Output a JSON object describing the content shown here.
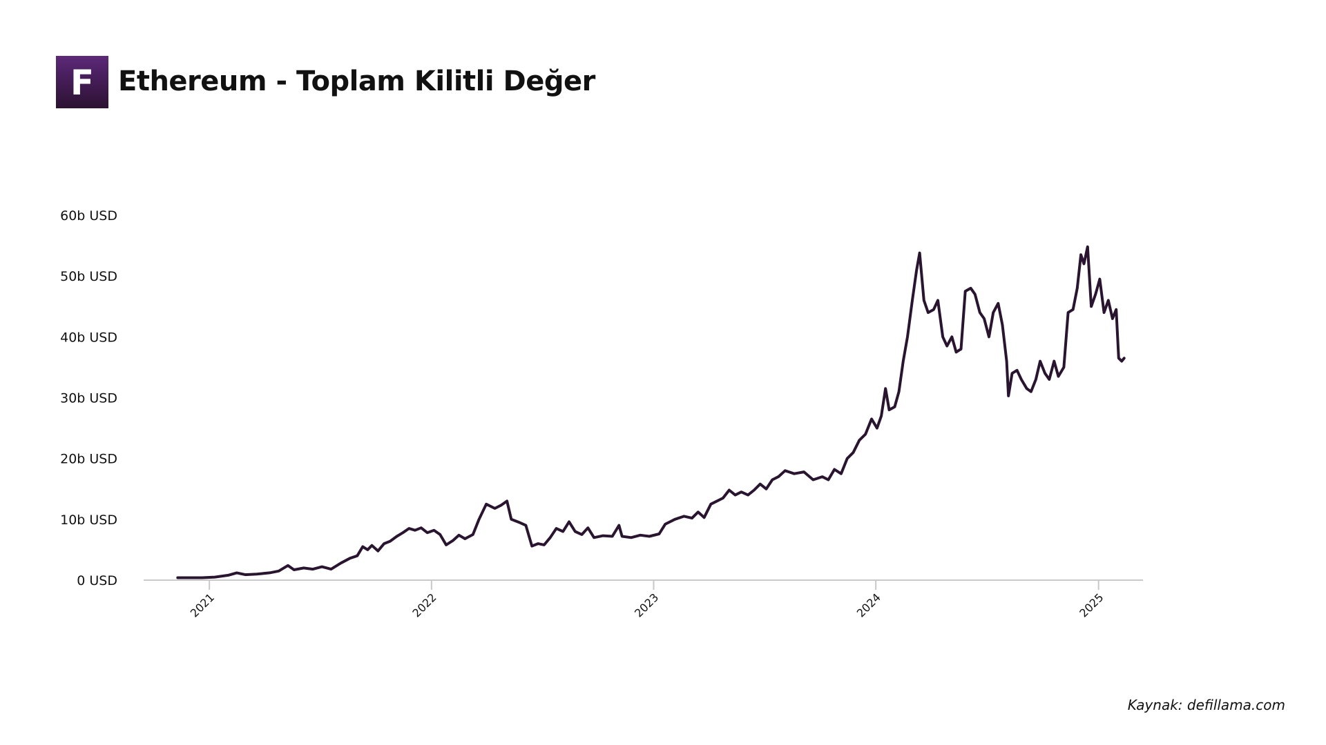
{
  "header": {
    "logo_letter": "F",
    "title": "Ethereum - Toplam Kilitli Değer"
  },
  "footer": {
    "source": "Kaynak: defillama.com"
  },
  "colors": {
    "line": "#2a1530",
    "axis": "#c8c8c8",
    "logo": "#4a1f5f"
  },
  "chart_data": {
    "type": "line",
    "title": "Ethereum - Toplam Kilitli Değer",
    "xlabel": "",
    "ylabel": "",
    "ylim": [
      0,
      60
    ],
    "xlim": [
      "2020-09-15",
      "2025-03-15"
    ],
    "grid": false,
    "y_ticks": [
      {
        "value": 0,
        "label": "0 USD"
      },
      {
        "value": 10,
        "label": "10b USD"
      },
      {
        "value": 20,
        "label": "20b USD"
      },
      {
        "value": 30,
        "label": "30b USD"
      },
      {
        "value": 40,
        "label": "40b USD"
      },
      {
        "value": 50,
        "label": "50b USD"
      },
      {
        "value": 60,
        "label": "60b USD"
      }
    ],
    "x_ticks": [
      {
        "value": "2021-01-01",
        "label": "2021"
      },
      {
        "value": "2022-01-01",
        "label": "2022"
      },
      {
        "value": "2023-01-01",
        "label": "2023"
      },
      {
        "value": "2024-01-01",
        "label": "2024"
      },
      {
        "value": "2025-01-01",
        "label": "2025"
      }
    ],
    "series": [
      {
        "points": [
          [
            "2020-11-10",
            0.4
          ],
          [
            "2020-12-01",
            0.4
          ],
          [
            "2020-12-20",
            0.4
          ],
          [
            "2021-01-10",
            0.5
          ],
          [
            "2021-02-01",
            0.8
          ],
          [
            "2021-02-15",
            1.2
          ],
          [
            "2021-03-01",
            0.9
          ],
          [
            "2021-03-20",
            1.0
          ],
          [
            "2021-04-10",
            1.2
          ],
          [
            "2021-04-25",
            1.5
          ],
          [
            "2021-05-10",
            2.4
          ],
          [
            "2021-05-20",
            1.7
          ],
          [
            "2021-06-05",
            2.0
          ],
          [
            "2021-06-20",
            1.8
          ],
          [
            "2021-07-05",
            2.2
          ],
          [
            "2021-07-20",
            1.8
          ],
          [
            "2021-08-05",
            2.8
          ],
          [
            "2021-08-20",
            3.6
          ],
          [
            "2021-09-01",
            4.0
          ],
          [
            "2021-09-10",
            5.5
          ],
          [
            "2021-09-18",
            5.0
          ],
          [
            "2021-09-25",
            5.7
          ],
          [
            "2021-10-05",
            4.8
          ],
          [
            "2021-10-15",
            6.0
          ],
          [
            "2021-10-25",
            6.4
          ],
          [
            "2021-11-05",
            7.2
          ],
          [
            "2021-11-15",
            7.8
          ],
          [
            "2021-11-25",
            8.5
          ],
          [
            "2021-12-05",
            8.2
          ],
          [
            "2021-12-15",
            8.6
          ],
          [
            "2021-12-25",
            7.8
          ],
          [
            "2022-01-05",
            8.2
          ],
          [
            "2022-01-15",
            7.5
          ],
          [
            "2022-01-25",
            5.8
          ],
          [
            "2022-02-05",
            6.5
          ],
          [
            "2022-02-15",
            7.4
          ],
          [
            "2022-02-25",
            6.8
          ],
          [
            "2022-03-10",
            7.5
          ],
          [
            "2022-03-20",
            10.0
          ],
          [
            "2022-04-01",
            12.5
          ],
          [
            "2022-04-15",
            11.8
          ],
          [
            "2022-04-25",
            12.3
          ],
          [
            "2022-05-05",
            13.0
          ],
          [
            "2022-05-12",
            10.0
          ],
          [
            "2022-05-25",
            9.5
          ],
          [
            "2022-06-05",
            9.0
          ],
          [
            "2022-06-15",
            5.6
          ],
          [
            "2022-06-25",
            6.0
          ],
          [
            "2022-07-05",
            5.8
          ],
          [
            "2022-07-15",
            7.0
          ],
          [
            "2022-07-25",
            8.5
          ],
          [
            "2022-08-05",
            8.0
          ],
          [
            "2022-08-15",
            9.6
          ],
          [
            "2022-08-25",
            8.0
          ],
          [
            "2022-09-05",
            7.5
          ],
          [
            "2022-09-15",
            8.6
          ],
          [
            "2022-09-25",
            7.0
          ],
          [
            "2022-10-10",
            7.3
          ],
          [
            "2022-10-25",
            7.2
          ],
          [
            "2022-11-05",
            9.0
          ],
          [
            "2022-11-10",
            7.2
          ],
          [
            "2022-11-25",
            7.0
          ],
          [
            "2022-12-10",
            7.4
          ],
          [
            "2022-12-25",
            7.2
          ],
          [
            "2023-01-10",
            7.6
          ],
          [
            "2023-01-20",
            9.2
          ],
          [
            "2023-02-05",
            10.0
          ],
          [
            "2023-02-20",
            10.5
          ],
          [
            "2023-03-05",
            10.2
          ],
          [
            "2023-03-15",
            11.2
          ],
          [
            "2023-03-25",
            10.3
          ],
          [
            "2023-04-05",
            12.5
          ],
          [
            "2023-04-15",
            13.0
          ],
          [
            "2023-04-25",
            13.5
          ],
          [
            "2023-05-05",
            14.8
          ],
          [
            "2023-05-15",
            14.0
          ],
          [
            "2023-05-25",
            14.5
          ],
          [
            "2023-06-05",
            14.0
          ],
          [
            "2023-06-15",
            14.8
          ],
          [
            "2023-06-25",
            15.8
          ],
          [
            "2023-07-05",
            15.0
          ],
          [
            "2023-07-15",
            16.5
          ],
          [
            "2023-07-25",
            17.0
          ],
          [
            "2023-08-05",
            18.0
          ],
          [
            "2023-08-20",
            17.5
          ],
          [
            "2023-09-05",
            17.8
          ],
          [
            "2023-09-20",
            16.5
          ],
          [
            "2023-10-05",
            17.0
          ],
          [
            "2023-10-15",
            16.5
          ],
          [
            "2023-10-25",
            18.2
          ],
          [
            "2023-11-05",
            17.5
          ],
          [
            "2023-11-15",
            20.0
          ],
          [
            "2023-11-25",
            21.0
          ],
          [
            "2023-12-05",
            23.0
          ],
          [
            "2023-12-15",
            24.0
          ],
          [
            "2023-12-25",
            26.5
          ],
          [
            "2024-01-03",
            25.0
          ],
          [
            "2024-01-10",
            27.0
          ],
          [
            "2024-01-17",
            31.5
          ],
          [
            "2024-01-23",
            28.0
          ],
          [
            "2024-02-01",
            28.5
          ],
          [
            "2024-02-08",
            31.0
          ],
          [
            "2024-02-15",
            36.0
          ],
          [
            "2024-02-22",
            40.0
          ],
          [
            "2024-03-01",
            46.0
          ],
          [
            "2024-03-08",
            51.0
          ],
          [
            "2024-03-13",
            53.8
          ],
          [
            "2024-03-20",
            46.0
          ],
          [
            "2024-03-27",
            44.0
          ],
          [
            "2024-04-05",
            44.5
          ],
          [
            "2024-04-12",
            46.0
          ],
          [
            "2024-04-20",
            40.0
          ],
          [
            "2024-04-27",
            38.5
          ],
          [
            "2024-05-05",
            40.0
          ],
          [
            "2024-05-12",
            37.5
          ],
          [
            "2024-05-20",
            38.0
          ],
          [
            "2024-05-27",
            47.5
          ],
          [
            "2024-06-05",
            48.0
          ],
          [
            "2024-06-12",
            47.0
          ],
          [
            "2024-06-20",
            44.0
          ],
          [
            "2024-06-27",
            43.0
          ],
          [
            "2024-07-05",
            40.0
          ],
          [
            "2024-07-12",
            44.0
          ],
          [
            "2024-07-20",
            45.5
          ],
          [
            "2024-07-27",
            42.0
          ],
          [
            "2024-08-03",
            36.0
          ],
          [
            "2024-08-06",
            30.3
          ],
          [
            "2024-08-12",
            34.0
          ],
          [
            "2024-08-20",
            34.5
          ],
          [
            "2024-08-27",
            33.0
          ],
          [
            "2024-09-05",
            31.5
          ],
          [
            "2024-09-12",
            31.0
          ],
          [
            "2024-09-20",
            33.0
          ],
          [
            "2024-09-27",
            36.0
          ],
          [
            "2024-10-05",
            34.0
          ],
          [
            "2024-10-12",
            33.0
          ],
          [
            "2024-10-20",
            36.0
          ],
          [
            "2024-10-27",
            33.5
          ],
          [
            "2024-11-05",
            35.0
          ],
          [
            "2024-11-12",
            44.0
          ],
          [
            "2024-11-20",
            44.5
          ],
          [
            "2024-11-27",
            48.0
          ],
          [
            "2024-12-03",
            53.5
          ],
          [
            "2024-12-08",
            52.0
          ],
          [
            "2024-12-14",
            54.8
          ],
          [
            "2024-12-20",
            45.0
          ],
          [
            "2024-12-27",
            47.0
          ],
          [
            "2025-01-03",
            49.5
          ],
          [
            "2025-01-10",
            44.0
          ],
          [
            "2025-01-17",
            46.0
          ],
          [
            "2025-01-24",
            43.0
          ],
          [
            "2025-01-30",
            44.5
          ],
          [
            "2025-02-03",
            36.5
          ],
          [
            "2025-02-08",
            36.0
          ],
          [
            "2025-02-12",
            36.5
          ]
        ]
      }
    ]
  }
}
